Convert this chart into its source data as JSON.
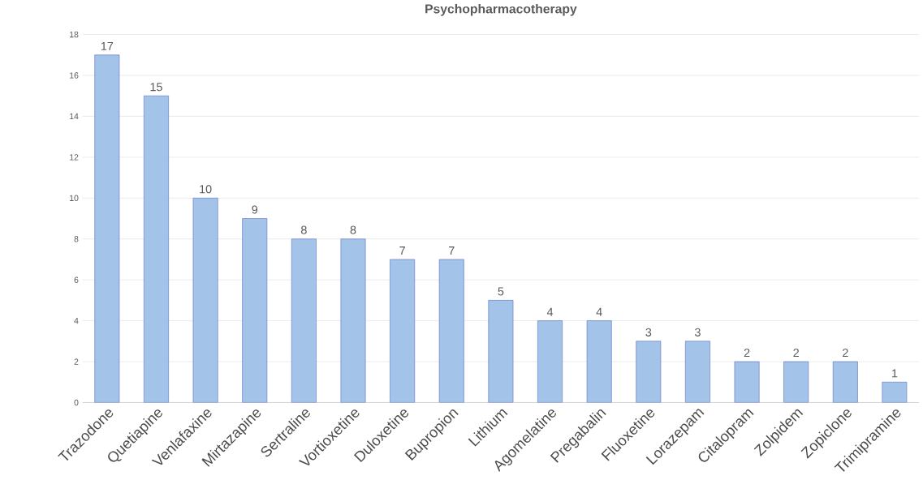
{
  "chart_data": {
    "type": "bar",
    "title": "Psychopharmacotherapy",
    "categories": [
      "Trazodone",
      "Quetiapine",
      "Venlafaxine",
      "Mirtazapine",
      "Sertraline",
      "Vortioxetine",
      "Duloxetine",
      "Bupropion",
      "Lithium",
      "Agomelatine",
      "Pregabalin",
      "Fluoxetine",
      "Lorazepam",
      "Citalopram",
      "Zolpidem",
      "Zopiclone",
      "Trimipramine"
    ],
    "values": [
      17,
      15,
      10,
      9,
      8,
      8,
      7,
      7,
      5,
      4,
      4,
      3,
      3,
      2,
      2,
      2,
      1
    ],
    "color": "#a3c3e8",
    "ylim": [
      0,
      18
    ],
    "yticks": [
      0,
      2,
      4,
      6,
      8,
      10,
      12,
      14,
      16,
      18
    ],
    "grid": "y",
    "data_labels": true
  }
}
